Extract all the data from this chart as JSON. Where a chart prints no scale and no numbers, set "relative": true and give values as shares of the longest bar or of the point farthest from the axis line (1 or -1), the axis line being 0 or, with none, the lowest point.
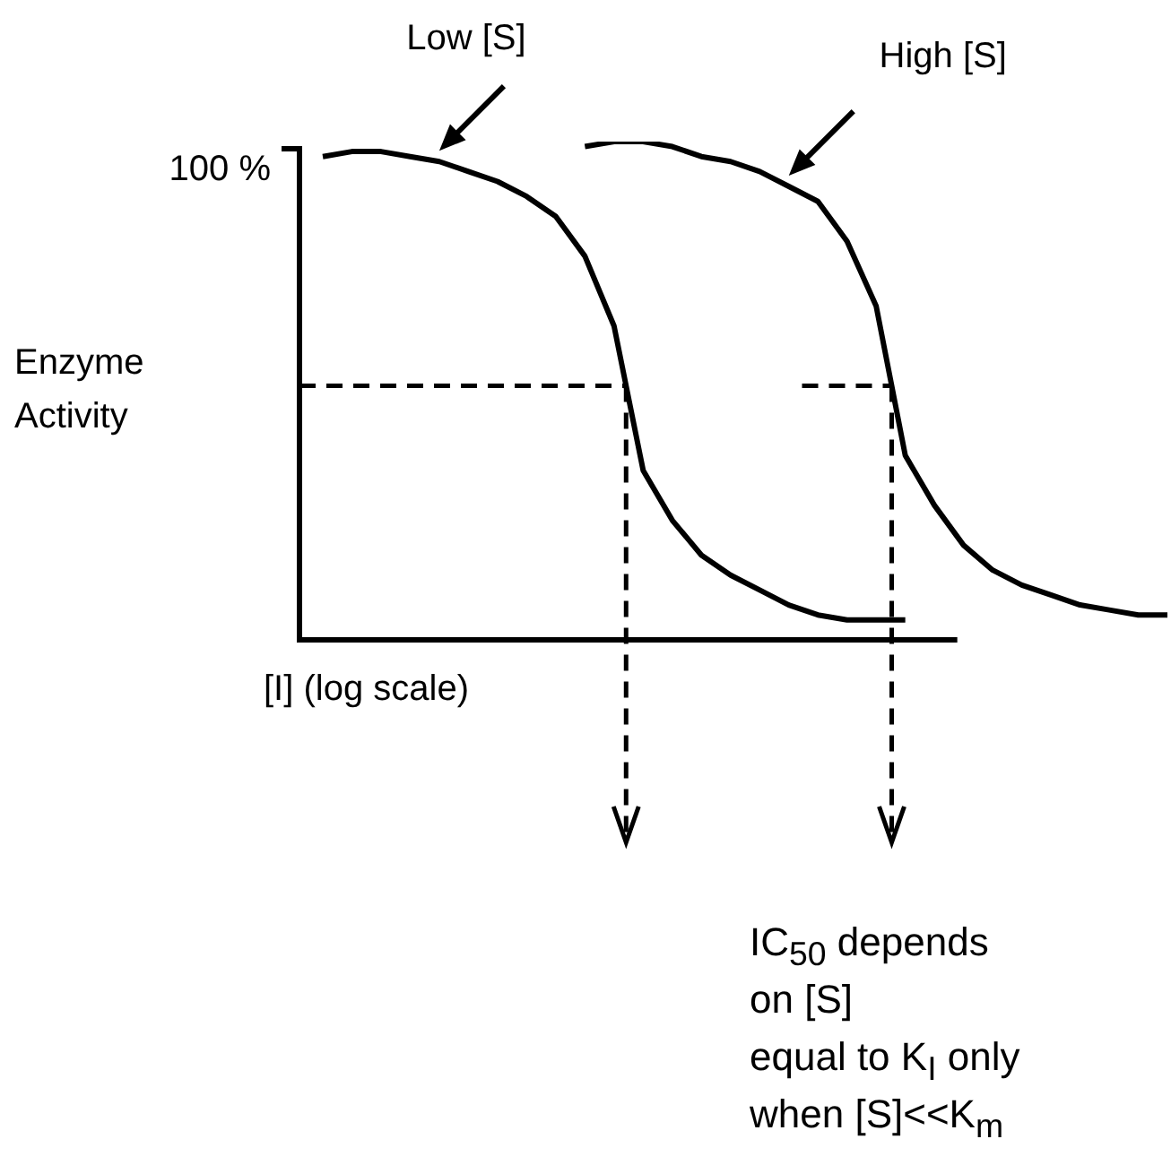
{
  "chart_data": {
    "type": "line",
    "relative": true,
    "legend": false,
    "marker": "none",
    "line_style": "solid",
    "xlabel": "[I] (log scale)",
    "ylabel": "Enzyme Activity",
    "categories": [
      null,
      null,
      null,
      null,
      null,
      null,
      null,
      null,
      null,
      null,
      null,
      null,
      null,
      null,
      null,
      null,
      null,
      null,
      null,
      null,
      null,
      null,
      null,
      null,
      null,
      null,
      null,
      null,
      null,
      null
    ],
    "series": [
      {
        "name": "Low [S]",
        "color": "#000000",
        "values": [
          0.97,
          0.98,
          0.98,
          0.97,
          0.96,
          0.94,
          0.92,
          0.89,
          0.85,
          0.77,
          0.63,
          0.34,
          0.24,
          0.17,
          0.13,
          0.1,
          0.07,
          0.05,
          0.04,
          0.04,
          0.04,
          null,
          null,
          null,
          null,
          null,
          null,
          null,
          null,
          null
        ]
      },
      {
        "name": "High [S]",
        "color": "#000000",
        "values": [
          null,
          null,
          null,
          null,
          null,
          null,
          null,
          null,
          null,
          0.99,
          1.0,
          1.0,
          0.99,
          0.97,
          0.96,
          0.94,
          0.91,
          0.88,
          0.8,
          0.67,
          0.37,
          0.27,
          0.19,
          0.14,
          0.11,
          0.09,
          0.07,
          0.06,
          0.05,
          0.05
        ]
      }
    ],
    "ref_lines": [
      {
        "axis": "y",
        "value": 0.51,
        "color": "#000000",
        "line_style": "dashed"
      }
    ],
    "annotations": [
      "100 %",
      "IC$_{50}$ depends\non [S]\nequal to K$_{I}$ only\nwhen [S]<<K$_{m}$"
    ]
  }
}
